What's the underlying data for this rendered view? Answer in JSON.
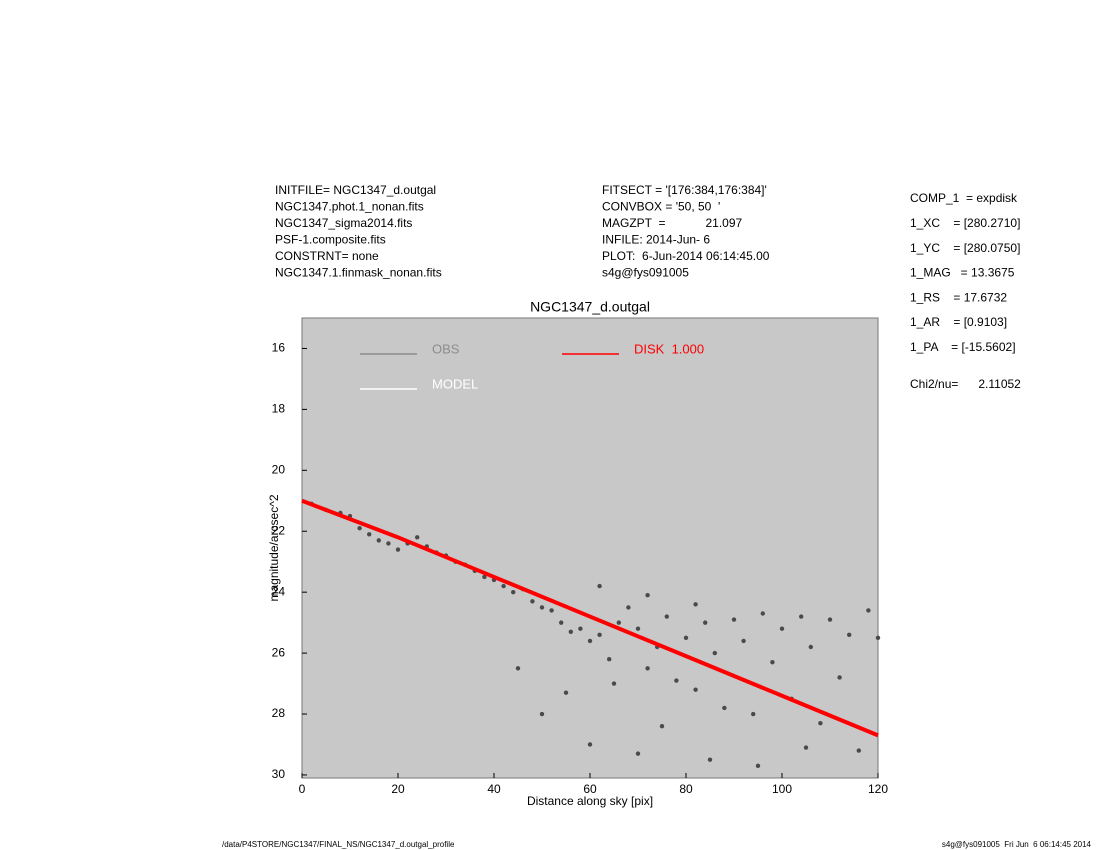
{
  "info": {
    "left": [
      "INITFILE= NGC1347_d.outgal",
      "NGC1347.phot.1_nonan.fits",
      "NGC1347_sigma2014.fits",
      "PSF-1.composite.fits",
      "CONSTRNT= none",
      "NGC1347.1.finmask_nonan.fits"
    ],
    "middle": [
      "FITSECT = '[176:384,176:384]'",
      "CONVBOX = '50, 50  '",
      "MAGZPT  =            21.097",
      "INFILE: 2014-Jun- 6",
      "PLOT:  6-Jun-2014 06:14:45.00",
      "s4g@fys091005"
    ],
    "right": [
      "COMP_1  = expdisk",
      "1_XC    = [280.2710]",
      "1_YC    = [280.0750]",
      "1_MAG   = 13.3675",
      "1_RS    = 17.6732",
      "1_AR    = [0.9103]",
      "1_PA    = [-15.5602]"
    ],
    "chi": "Chi2/nu=      2.11052"
  },
  "footer": {
    "left": "/data/P4STORE/NGC1347/FINAL_NS/NGC1347_d.outgal_profile",
    "right": "s4g@fys091005  Fri Jun  6 06:14:45 2014"
  },
  "chart_data": {
    "type": "scatter",
    "title": "NGC1347_d.outgal",
    "x_label": "Distance along sky [pix]",
    "y_label": "magnitude/arcsec^2",
    "xlim": [
      0,
      120
    ],
    "xticks": [
      0,
      20,
      40,
      60,
      80,
      100,
      120
    ],
    "ylim": [
      30.1,
      15
    ],
    "yticks": [
      16,
      18,
      20,
      22,
      24,
      26,
      28,
      30
    ],
    "background": "#c8c8c8",
    "series": [
      {
        "name": "OBS",
        "color": "#4a4a4a",
        "legend_color": "#8c8c8c",
        "mode": "points",
        "x": [
          2,
          5,
          8,
          10,
          12,
          14,
          16,
          18,
          20,
          22,
          24,
          26,
          28,
          30,
          32,
          34,
          36,
          38,
          40,
          42,
          44,
          46,
          48,
          50,
          52,
          54,
          56,
          58,
          60,
          62,
          64,
          66,
          68,
          70,
          72,
          74,
          76,
          78,
          80,
          82,
          84,
          86,
          88,
          90,
          92,
          94,
          96,
          98,
          100,
          102,
          104,
          106,
          108,
          110,
          112,
          114,
          116,
          118,
          120,
          60,
          70,
          50,
          45,
          55,
          65,
          75,
          85,
          95,
          105,
          62,
          72,
          82
        ],
        "values": [
          21.1,
          21.3,
          21.4,
          21.5,
          21.9,
          22.1,
          22.3,
          22.4,
          22.6,
          22.4,
          22.2,
          22.5,
          22.7,
          22.8,
          23.0,
          23.1,
          23.3,
          23.5,
          23.6,
          23.8,
          24.0,
          23.9,
          24.3,
          24.5,
          24.6,
          25.0,
          25.3,
          25.2,
          25.6,
          25.4,
          26.2,
          25.0,
          24.5,
          25.2,
          26.5,
          25.8,
          24.8,
          26.9,
          25.5,
          27.2,
          25.0,
          26.0,
          27.8,
          24.9,
          25.6,
          28.0,
          24.7,
          26.3,
          25.2,
          27.5,
          24.8,
          25.8,
          28.3,
          24.9,
          26.8,
          25.4,
          29.2,
          24.6,
          25.5,
          29.0,
          29.3,
          28.0,
          26.5,
          27.3,
          27.0,
          28.4,
          29.5,
          29.7,
          29.1,
          23.8,
          24.1,
          24.4
        ]
      },
      {
        "name": "DISK  1.000",
        "color": "#ff0000",
        "legend_color": "#ff0000",
        "mode": "line",
        "x": [
          0,
          20,
          40,
          60,
          80,
          100,
          120
        ],
        "values": [
          21.0,
          22.2,
          23.5,
          24.8,
          26.1,
          27.4,
          28.7
        ]
      }
    ],
    "extra_legend": {
      "label": "MODEL",
      "color": "#ffffff"
    }
  }
}
